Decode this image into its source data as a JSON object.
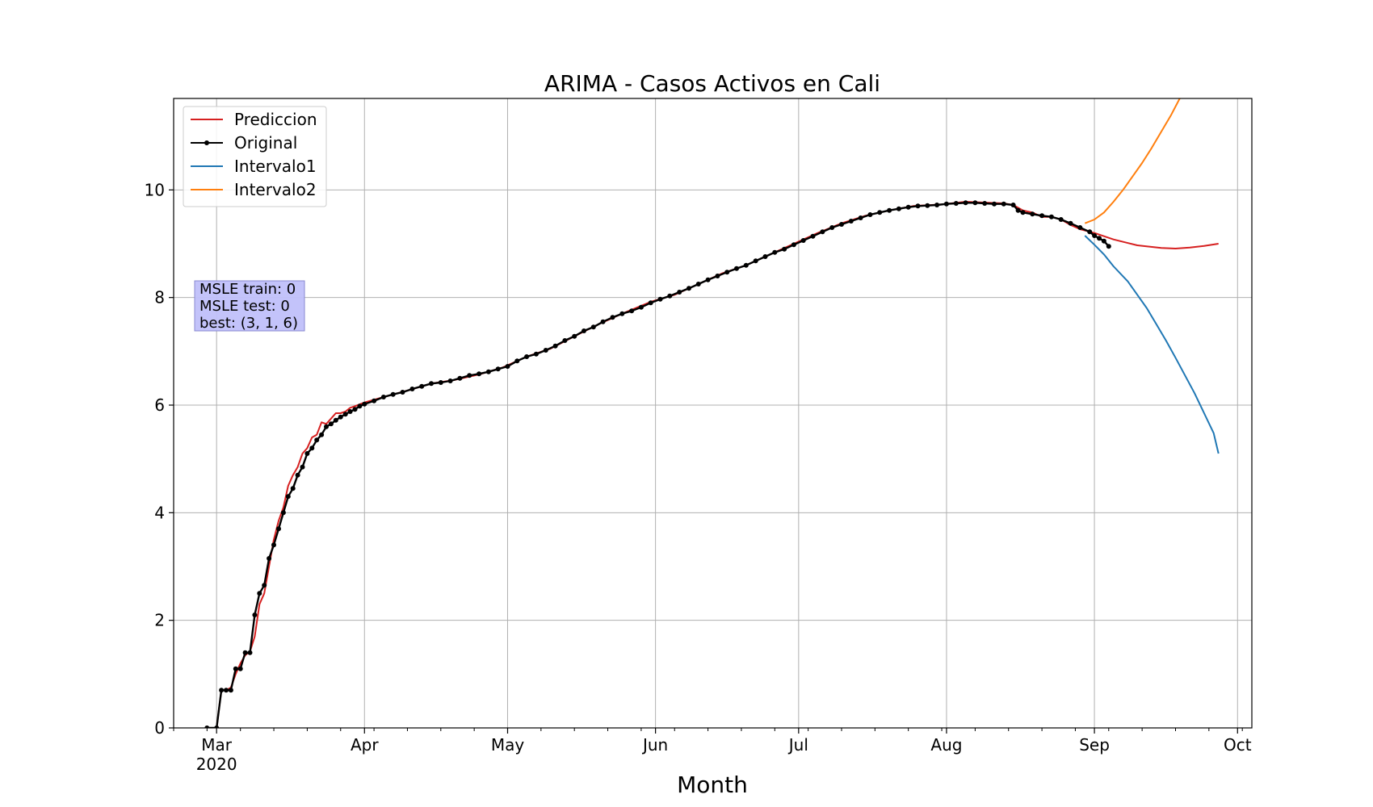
{
  "chart_data": {
    "type": "line",
    "title": "ARIMA - Casos Activos en Cali",
    "xlabel": "Month",
    "ylabel": "",
    "x_axis": "date",
    "xlim": [
      "2020-02-21",
      "2020-10-04"
    ],
    "ylim": [
      0,
      11.7
    ],
    "grid": true,
    "legend_position": "top-left",
    "x_ticks": [
      {
        "date": "2020-03-01",
        "label": "Mar",
        "sublabel": "2020"
      },
      {
        "date": "2020-04-01",
        "label": "Apr",
        "sublabel": ""
      },
      {
        "date": "2020-05-01",
        "label": "May",
        "sublabel": ""
      },
      {
        "date": "2020-06-01",
        "label": "Jun",
        "sublabel": ""
      },
      {
        "date": "2020-07-01",
        "label": "Jul",
        "sublabel": ""
      },
      {
        "date": "2020-08-01",
        "label": "Aug",
        "sublabel": ""
      },
      {
        "date": "2020-09-01",
        "label": "Sep",
        "sublabel": ""
      },
      {
        "date": "2020-10-01",
        "label": "Oct",
        "sublabel": ""
      }
    ],
    "y_ticks": [
      0,
      2,
      4,
      6,
      8,
      10
    ],
    "annotation": {
      "lines": [
        "MSLE train: 0",
        "MSLE test: 0",
        "best: (3, 1, 6)"
      ],
      "background": "#c0c0fa"
    },
    "series": [
      {
        "name": "Prediccion",
        "color": "#d62020",
        "marker": false,
        "points": [
          [
            "2020-02-29",
            0
          ],
          [
            "2020-03-01",
            0
          ],
          [
            "2020-03-02",
            0.7
          ],
          [
            "2020-03-03",
            0.7
          ],
          [
            "2020-03-04",
            0.75
          ],
          [
            "2020-03-05",
            1.0
          ],
          [
            "2020-03-06",
            1.2
          ],
          [
            "2020-03-07",
            1.35
          ],
          [
            "2020-03-08",
            1.42
          ],
          [
            "2020-03-09",
            1.7
          ],
          [
            "2020-03-10",
            2.3
          ],
          [
            "2020-03-11",
            2.5
          ],
          [
            "2020-03-12",
            3.0
          ],
          [
            "2020-03-13",
            3.5
          ],
          [
            "2020-03-14",
            3.85
          ],
          [
            "2020-03-15",
            4.1
          ],
          [
            "2020-03-16",
            4.5
          ],
          [
            "2020-03-17",
            4.7
          ],
          [
            "2020-03-18",
            4.85
          ],
          [
            "2020-03-19",
            5.1
          ],
          [
            "2020-03-20",
            5.2
          ],
          [
            "2020-03-21",
            5.4
          ],
          [
            "2020-03-22",
            5.45
          ],
          [
            "2020-03-23",
            5.68
          ],
          [
            "2020-03-24",
            5.65
          ],
          [
            "2020-03-25",
            5.75
          ],
          [
            "2020-03-26",
            5.85
          ],
          [
            "2020-03-27",
            5.85
          ],
          [
            "2020-03-28",
            5.88
          ],
          [
            "2020-03-29",
            5.95
          ],
          [
            "2020-03-30",
            5.98
          ],
          [
            "2020-04-01",
            6.05
          ],
          [
            "2020-04-05",
            6.15
          ],
          [
            "2020-04-10",
            6.27
          ],
          [
            "2020-04-15",
            6.4
          ],
          [
            "2020-04-20",
            6.47
          ],
          [
            "2020-04-25",
            6.57
          ],
          [
            "2020-04-30",
            6.7
          ],
          [
            "2020-05-05",
            6.9
          ],
          [
            "2020-05-10",
            7.05
          ],
          [
            "2020-05-15",
            7.28
          ],
          [
            "2020-05-20",
            7.5
          ],
          [
            "2020-05-25",
            7.7
          ],
          [
            "2020-05-31",
            7.92
          ],
          [
            "2020-06-05",
            8.05
          ],
          [
            "2020-06-10",
            8.25
          ],
          [
            "2020-06-15",
            8.45
          ],
          [
            "2020-06-20",
            8.6
          ],
          [
            "2020-06-25",
            8.8
          ],
          [
            "2020-06-30",
            9.0
          ],
          [
            "2020-07-05",
            9.2
          ],
          [
            "2020-07-10",
            9.38
          ],
          [
            "2020-07-15",
            9.52
          ],
          [
            "2020-07-20",
            9.62
          ],
          [
            "2020-07-25",
            9.7
          ],
          [
            "2020-07-31",
            9.73
          ],
          [
            "2020-08-05",
            9.78
          ],
          [
            "2020-08-10",
            9.76
          ],
          [
            "2020-08-13",
            9.75
          ],
          [
            "2020-08-15",
            9.72
          ],
          [
            "2020-08-17",
            9.62
          ],
          [
            "2020-08-19",
            9.58
          ],
          [
            "2020-08-21",
            9.5
          ],
          [
            "2020-08-23",
            9.5
          ],
          [
            "2020-08-25",
            9.45
          ],
          [
            "2020-08-27",
            9.35
          ],
          [
            "2020-08-29",
            9.27
          ],
          [
            "2020-09-01",
            9.2
          ],
          [
            "2020-09-05",
            9.08
          ],
          [
            "2020-09-10",
            8.97
          ],
          [
            "2020-09-15",
            8.92
          ],
          [
            "2020-09-18",
            8.91
          ],
          [
            "2020-09-21",
            8.93
          ],
          [
            "2020-09-24",
            8.96
          ],
          [
            "2020-09-27",
            9.0
          ]
        ]
      },
      {
        "name": "Original",
        "color": "#000000",
        "marker": true,
        "points": [
          [
            "2020-02-28",
            0
          ],
          [
            "2020-03-01",
            0
          ],
          [
            "2020-03-02",
            0.7
          ],
          [
            "2020-03-03",
            0.7
          ],
          [
            "2020-03-04",
            0.7
          ],
          [
            "2020-03-05",
            1.1
          ],
          [
            "2020-03-06",
            1.1
          ],
          [
            "2020-03-07",
            1.4
          ],
          [
            "2020-03-08",
            1.4
          ],
          [
            "2020-03-09",
            2.1
          ],
          [
            "2020-03-10",
            2.5
          ],
          [
            "2020-03-11",
            2.65
          ],
          [
            "2020-03-12",
            3.15
          ],
          [
            "2020-03-13",
            3.4
          ],
          [
            "2020-03-14",
            3.7
          ],
          [
            "2020-03-15",
            4.0
          ],
          [
            "2020-03-16",
            4.3
          ],
          [
            "2020-03-17",
            4.45
          ],
          [
            "2020-03-18",
            4.7
          ],
          [
            "2020-03-19",
            4.85
          ],
          [
            "2020-03-20",
            5.1
          ],
          [
            "2020-03-21",
            5.2
          ],
          [
            "2020-03-22",
            5.35
          ],
          [
            "2020-03-23",
            5.45
          ],
          [
            "2020-03-24",
            5.6
          ],
          [
            "2020-03-25",
            5.65
          ],
          [
            "2020-03-26",
            5.72
          ],
          [
            "2020-03-27",
            5.78
          ],
          [
            "2020-03-28",
            5.83
          ],
          [
            "2020-03-29",
            5.88
          ],
          [
            "2020-03-30",
            5.92
          ],
          [
            "2020-03-31",
            5.98
          ],
          [
            "2020-04-01",
            6.02
          ],
          [
            "2020-04-03",
            6.08
          ],
          [
            "2020-04-05",
            6.15
          ],
          [
            "2020-04-07",
            6.2
          ],
          [
            "2020-04-09",
            6.24
          ],
          [
            "2020-04-11",
            6.3
          ],
          [
            "2020-04-13",
            6.35
          ],
          [
            "2020-04-15",
            6.4
          ],
          [
            "2020-04-17",
            6.42
          ],
          [
            "2020-04-19",
            6.45
          ],
          [
            "2020-04-21",
            6.5
          ],
          [
            "2020-04-23",
            6.55
          ],
          [
            "2020-04-25",
            6.58
          ],
          [
            "2020-04-27",
            6.62
          ],
          [
            "2020-04-29",
            6.67
          ],
          [
            "2020-05-01",
            6.72
          ],
          [
            "2020-05-03",
            6.82
          ],
          [
            "2020-05-05",
            6.9
          ],
          [
            "2020-05-07",
            6.95
          ],
          [
            "2020-05-09",
            7.02
          ],
          [
            "2020-05-11",
            7.1
          ],
          [
            "2020-05-13",
            7.2
          ],
          [
            "2020-05-15",
            7.28
          ],
          [
            "2020-05-17",
            7.38
          ],
          [
            "2020-05-19",
            7.45
          ],
          [
            "2020-05-21",
            7.55
          ],
          [
            "2020-05-23",
            7.63
          ],
          [
            "2020-05-25",
            7.7
          ],
          [
            "2020-05-27",
            7.75
          ],
          [
            "2020-05-29",
            7.82
          ],
          [
            "2020-05-31",
            7.9
          ],
          [
            "2020-06-02",
            7.97
          ],
          [
            "2020-06-04",
            8.03
          ],
          [
            "2020-06-06",
            8.1
          ],
          [
            "2020-06-08",
            8.17
          ],
          [
            "2020-06-10",
            8.25
          ],
          [
            "2020-06-12",
            8.33
          ],
          [
            "2020-06-14",
            8.4
          ],
          [
            "2020-06-16",
            8.47
          ],
          [
            "2020-06-18",
            8.54
          ],
          [
            "2020-06-20",
            8.6
          ],
          [
            "2020-06-22",
            8.68
          ],
          [
            "2020-06-24",
            8.76
          ],
          [
            "2020-06-26",
            8.84
          ],
          [
            "2020-06-28",
            8.9
          ],
          [
            "2020-06-30",
            8.98
          ],
          [
            "2020-07-02",
            9.06
          ],
          [
            "2020-07-04",
            9.14
          ],
          [
            "2020-07-06",
            9.22
          ],
          [
            "2020-07-08",
            9.3
          ],
          [
            "2020-07-10",
            9.36
          ],
          [
            "2020-07-12",
            9.42
          ],
          [
            "2020-07-14",
            9.48
          ],
          [
            "2020-07-16",
            9.54
          ],
          [
            "2020-07-18",
            9.58
          ],
          [
            "2020-07-20",
            9.62
          ],
          [
            "2020-07-22",
            9.65
          ],
          [
            "2020-07-24",
            9.68
          ],
          [
            "2020-07-26",
            9.7
          ],
          [
            "2020-07-28",
            9.71
          ],
          [
            "2020-07-30",
            9.72
          ],
          [
            "2020-08-01",
            9.74
          ],
          [
            "2020-08-03",
            9.75
          ],
          [
            "2020-08-05",
            9.76
          ],
          [
            "2020-08-07",
            9.76
          ],
          [
            "2020-08-09",
            9.75
          ],
          [
            "2020-08-11",
            9.74
          ],
          [
            "2020-08-13",
            9.74
          ],
          [
            "2020-08-15",
            9.72
          ],
          [
            "2020-08-16",
            9.62
          ],
          [
            "2020-08-17",
            9.58
          ],
          [
            "2020-08-19",
            9.55
          ],
          [
            "2020-08-21",
            9.52
          ],
          [
            "2020-08-23",
            9.5
          ],
          [
            "2020-08-25",
            9.45
          ],
          [
            "2020-08-27",
            9.38
          ],
          [
            "2020-08-29",
            9.3
          ],
          [
            "2020-08-31",
            9.22
          ],
          [
            "2020-09-01",
            9.15
          ],
          [
            "2020-09-02",
            9.1
          ],
          [
            "2020-09-03",
            9.05
          ],
          [
            "2020-09-04",
            8.95
          ]
        ]
      },
      {
        "name": "Intervalo1",
        "color": "#1f77b4",
        "marker": false,
        "points": [
          [
            "2020-08-30",
            9.15
          ],
          [
            "2020-09-01",
            8.98
          ],
          [
            "2020-09-03",
            8.8
          ],
          [
            "2020-09-05",
            8.58
          ],
          [
            "2020-09-08",
            8.3
          ],
          [
            "2020-09-10",
            8.05
          ],
          [
            "2020-09-12",
            7.8
          ],
          [
            "2020-09-14",
            7.5
          ],
          [
            "2020-09-16",
            7.2
          ],
          [
            "2020-09-18",
            6.88
          ],
          [
            "2020-09-20",
            6.55
          ],
          [
            "2020-09-22",
            6.22
          ],
          [
            "2020-09-24",
            5.85
          ],
          [
            "2020-09-26",
            5.48
          ],
          [
            "2020-09-27",
            5.1
          ]
        ]
      },
      {
        "name": "Intervalo2",
        "color": "#ff7f0e",
        "marker": false,
        "points": [
          [
            "2020-08-30",
            9.38
          ],
          [
            "2020-09-01",
            9.45
          ],
          [
            "2020-09-03",
            9.58
          ],
          [
            "2020-09-05",
            9.78
          ],
          [
            "2020-09-07",
            10.0
          ],
          [
            "2020-09-09",
            10.25
          ],
          [
            "2020-09-11",
            10.5
          ],
          [
            "2020-09-13",
            10.78
          ],
          [
            "2020-09-15",
            11.08
          ],
          [
            "2020-09-17",
            11.38
          ],
          [
            "2020-09-18",
            11.55
          ],
          [
            "2020-09-19",
            11.72
          ]
        ]
      }
    ]
  }
}
